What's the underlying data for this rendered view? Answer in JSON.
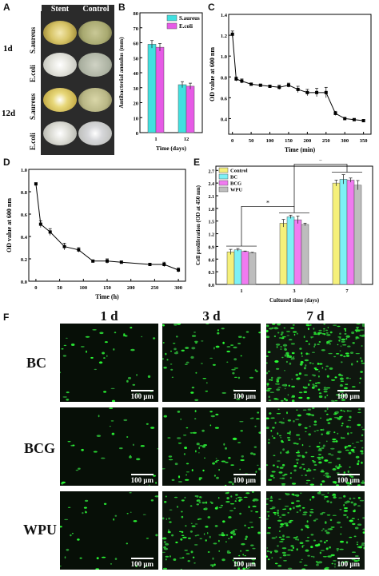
{
  "panel_labels": {
    "A": "A",
    "B": "B",
    "C": "C",
    "D": "D",
    "E": "E",
    "F": "F"
  },
  "panelA": {
    "col_headers": [
      "Stent",
      "Control"
    ],
    "row_times": [
      "1d",
      "12d"
    ],
    "row_labels": [
      "S.aureus",
      "E.coli",
      "S.aureus",
      "E.coli"
    ]
  },
  "chart_data": [
    {
      "id": "B",
      "type": "bar",
      "categories": [
        "1",
        "12"
      ],
      "series": [
        {
          "name": "S.aureus",
          "values": [
            59,
            32
          ],
          "errors": [
            2.5,
            2
          ],
          "color": "#40e0e0"
        },
        {
          "name": "E.coli",
          "values": [
            57,
            31
          ],
          "errors": [
            2.5,
            2
          ],
          "color": "#e65ae6"
        }
      ],
      "xlabel": "Time (days)",
      "ylabel": "Antibacterial annulus (mm)",
      "ylim": [
        0,
        80
      ],
      "yticks": [
        0,
        10,
        20,
        30,
        40,
        50,
        60,
        70,
        80
      ],
      "legend": "top-right"
    },
    {
      "id": "C",
      "type": "line",
      "x": [
        0,
        10,
        25,
        50,
        75,
        100,
        125,
        150,
        175,
        200,
        225,
        250,
        275,
        300,
        325,
        350
      ],
      "y": [
        1.21,
        0.78,
        0.76,
        0.73,
        0.72,
        0.71,
        0.7,
        0.72,
        0.68,
        0.65,
        0.65,
        0.65,
        0.45,
        0.4,
        0.39,
        0.38
      ],
      "errors": [
        0.03,
        0.02,
        0.02,
        0.01,
        0.01,
        0.01,
        0.02,
        0.02,
        0.03,
        0.03,
        0.04,
        0.05,
        0.02,
        0.01,
        0.01,
        0.01
      ],
      "xlabel": "Time (min)",
      "ylabel": "OD value at 600 nm",
      "xlim": [
        -10,
        370
      ],
      "ylim": [
        0.25,
        1.4
      ],
      "xticks": [
        0,
        50,
        100,
        150,
        200,
        250,
        300,
        350
      ],
      "yticks": [
        0.4,
        0.6,
        0.8,
        1.0,
        1.2,
        1.4
      ],
      "ytick_labels": [
        "0.4",
        "0.6",
        "0.8",
        "1.0",
        "1.2",
        "1.4"
      ]
    },
    {
      "id": "D",
      "type": "line",
      "x": [
        0,
        10,
        30,
        60,
        90,
        120,
        150,
        180,
        240,
        270,
        300
      ],
      "y": [
        0.87,
        0.51,
        0.44,
        0.31,
        0.28,
        0.18,
        0.18,
        0.17,
        0.15,
        0.15,
        0.1
      ],
      "errors": [
        0.01,
        0.03,
        0.03,
        0.03,
        0.02,
        0.01,
        0.02,
        0.01,
        0.01,
        0.02,
        0.02
      ],
      "xlabel": "Time (h)",
      "ylabel": "OD value at 600 nm",
      "xlim": [
        -15,
        315
      ],
      "ylim": [
        0,
        1.0
      ],
      "xticks": [
        0,
        50,
        100,
        150,
        200,
        250,
        300
      ],
      "yticks": [
        0.0,
        0.2,
        0.4,
        0.6,
        0.8,
        1.0
      ],
      "ytick_labels": [
        "0.0",
        "0.2",
        "0.4",
        "0.6",
        "0.8",
        "1.0"
      ]
    },
    {
      "id": "E",
      "type": "bar",
      "categories": [
        "1",
        "3",
        "7"
      ],
      "series": [
        {
          "name": "Control",
          "values": [
            0.77,
            1.45,
            2.4
          ],
          "errors": [
            0.06,
            0.09,
            0.07
          ],
          "color": "#f5f07a"
        },
        {
          "name": "BC",
          "values": [
            0.82,
            1.6,
            2.49
          ],
          "errors": [
            0.03,
            0.04,
            0.11
          ],
          "color": "#7df0f5"
        },
        {
          "name": "BCG",
          "values": [
            0.78,
            1.53,
            2.47
          ],
          "errors": [
            0.01,
            0.09,
            0.05
          ],
          "color": "#f07af0"
        },
        {
          "name": "WPU",
          "values": [
            0.75,
            1.42,
            2.35
          ],
          "errors": [
            0.01,
            0.03,
            0.11
          ],
          "color": "#bdbdbd"
        }
      ],
      "xlabel": "Cultured time (days)",
      "ylabel": "Cell proliferation (OD at 450 nm)",
      "ylim": [
        0,
        2.8
      ],
      "yticks": [
        0.0,
        0.3,
        0.6,
        0.9,
        1.2,
        1.5,
        1.8,
        2.1,
        2.4,
        2.7
      ],
      "ytick_labels": [
        "0.0",
        "0.3",
        "0.6",
        "0.9",
        "1.2",
        "1.5",
        "1.8",
        "2.1",
        "2.4",
        "2.7"
      ],
      "significance": [
        "*",
        "*"
      ],
      "legend": "top-left"
    }
  ],
  "panelF": {
    "col_headers": [
      "1 d",
      "3 d",
      "7 d"
    ],
    "row_labels": [
      "BC",
      "BCG",
      "WPU"
    ],
    "scale_bar": "100 μm",
    "cell_density": [
      [
        40,
        70,
        260
      ],
      [
        30,
        80,
        230
      ],
      [
        35,
        160,
        220
      ]
    ]
  }
}
